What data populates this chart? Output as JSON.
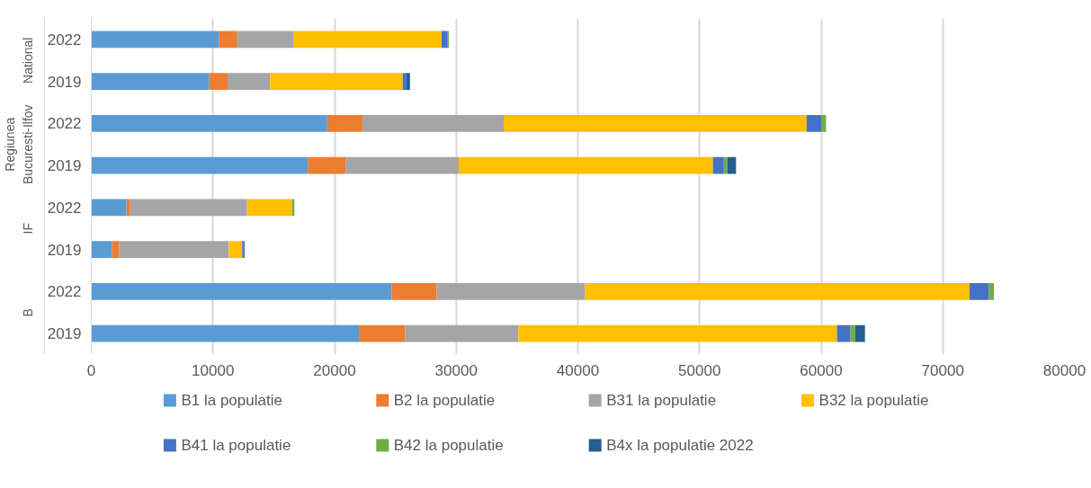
{
  "chart_data": {
    "type": "bar",
    "orientation": "horizontal",
    "stacked": true,
    "categories": [
      "2022",
      "2019",
      "2022",
      "2019",
      "2022",
      "2019",
      "2022",
      "2019"
    ],
    "annotations": [
      "National",
      "Regiunea Bucuresti-Ilfov",
      "IF",
      "B"
    ],
    "series": [
      {
        "name": "B1 la populatie",
        "color": "#5b9bd5",
        "values": [
          10500,
          9700,
          19400,
          17800,
          2900,
          1700,
          24700,
          22000
        ]
      },
      {
        "name": "B2 la populatie",
        "color": "#ed7d31",
        "values": [
          1500,
          1500,
          2900,
          3100,
          300,
          600,
          3700,
          3800
        ]
      },
      {
        "name": "B31 la populatie",
        "color": "#a5a5a5",
        "values": [
          4600,
          3500,
          11600,
          9300,
          9600,
          9000,
          12200,
          9300
        ]
      },
      {
        "name": "B32 la populatie",
        "color": "#ffc000",
        "values": [
          12200,
          10900,
          24900,
          20900,
          3700,
          1100,
          31600,
          26200
        ]
      },
      {
        "name": "B41 la populatie",
        "color": "#4472c4",
        "values": [
          500,
          300,
          1200,
          900,
          0,
          100,
          1600,
          1100
        ]
      },
      {
        "name": "B42 la populatie",
        "color": "#70ad47",
        "values": [
          100,
          0,
          400,
          300,
          200,
          0,
          400,
          400
        ]
      },
      {
        "name": "B4x la populatie 2022",
        "color": "#255e91",
        "values": [
          0,
          300,
          0,
          700,
          0,
          100,
          0,
          800
        ]
      }
    ],
    "xlim": [
      0,
      80000
    ],
    "xticks": [
      0,
      10000,
      20000,
      30000,
      40000,
      50000,
      60000,
      70000,
      80000
    ],
    "grid": "x",
    "legend": "bottom"
  }
}
